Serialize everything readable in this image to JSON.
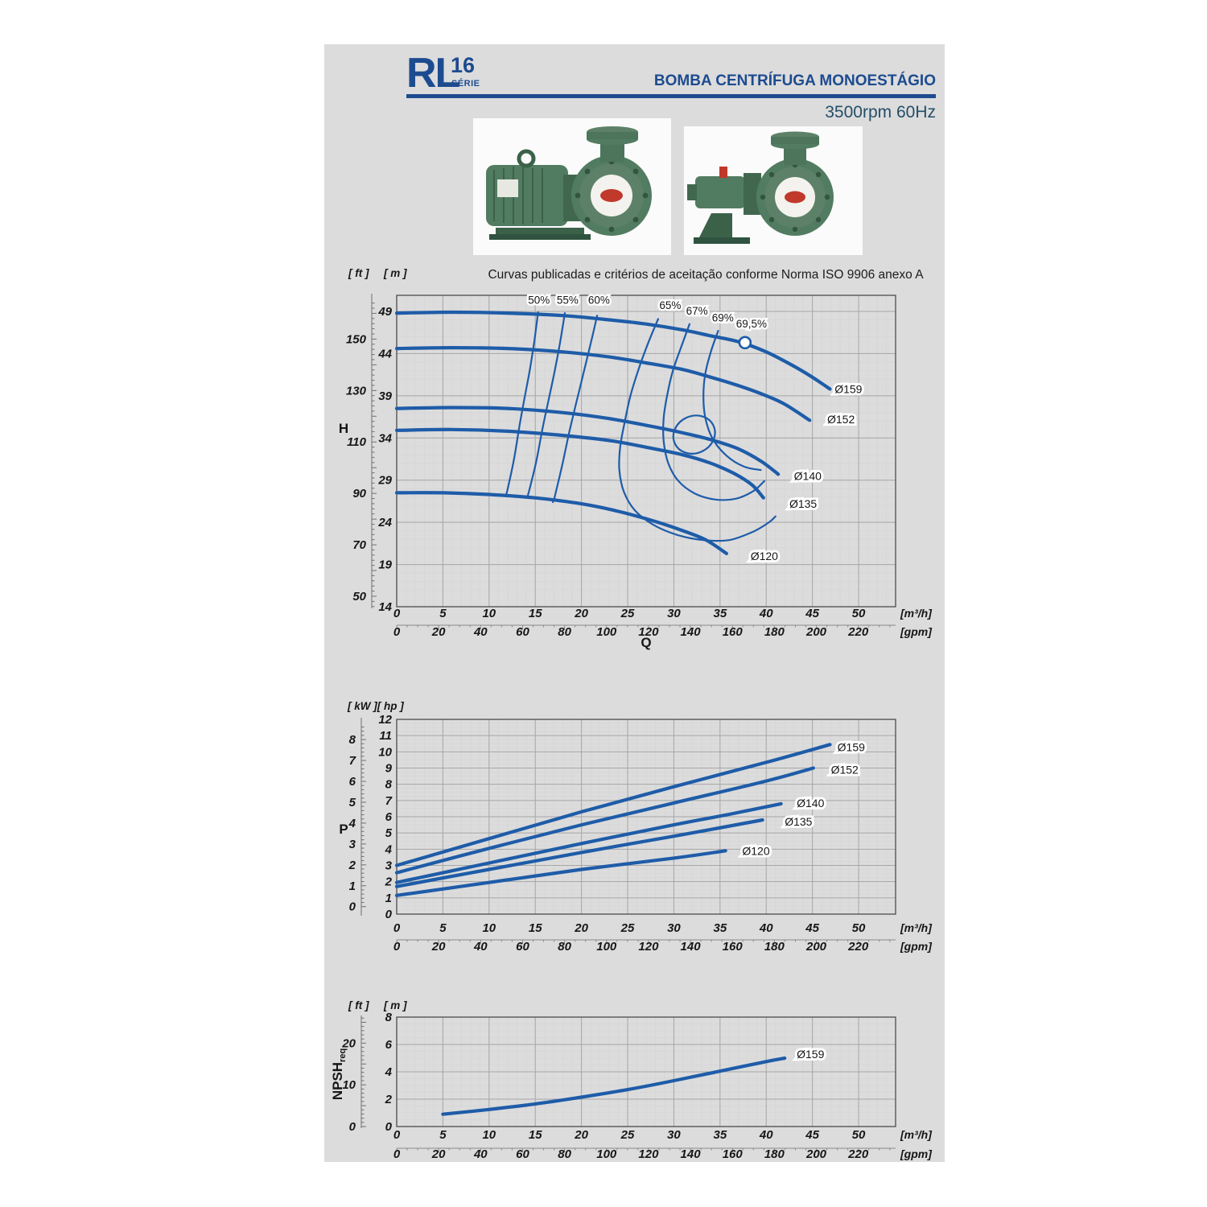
{
  "header": {
    "series_prefix": "RL",
    "series_number": "16",
    "series_word": "SÉRIE",
    "title": "BOMBA CENTRÍFUGA MONOESTÁGIO",
    "subtitle": "3500rpm 60Hz",
    "accent_color": "#1d4b8f"
  },
  "colors": {
    "curve_blue": "#1e5ca8",
    "grid_minor": "#d7d7d7",
    "grid_major": "#a6a6a6",
    "frame": "#4c4c4c",
    "panel_bg": "#dcdcdd",
    "pump_green": "#5d8168",
    "pump_green_dark": "#3c6149",
    "logo_red": "#c0392b"
  },
  "photos": {
    "left_caption": "pump with motor",
    "right_caption": "bare shaft pump"
  },
  "chart_data": [
    {
      "type": "line",
      "id": "hq",
      "title": "Curvas publicadas e critérios de aceitação conforme Norma ISO 9906 anexo A",
      "y_axis_name": "H",
      "y_units": [
        "[ ft ]",
        "[ m ]"
      ],
      "x_label": "Q",
      "x_units": [
        "[m³/h]",
        "[gpm]"
      ],
      "xlim": [
        0,
        54
      ],
      "ylim_m": [
        14,
        50.9
      ],
      "x_ticks_m3h": [
        0,
        5,
        10,
        15,
        20,
        25,
        30,
        35,
        40,
        45,
        50
      ],
      "x_ticks_gpm": [
        0,
        20,
        40,
        60,
        80,
        100,
        120,
        140,
        160,
        180,
        200,
        220
      ],
      "y_ticks_m": [
        14,
        19,
        24,
        29,
        34,
        39,
        44,
        49
      ],
      "y_ticks_ft": [
        50,
        70,
        90,
        110,
        130,
        150
      ],
      "series": [
        {
          "name": "Ø159",
          "points": [
            [
              0,
              48.8
            ],
            [
              6,
              48.9
            ],
            [
              12,
              48.8
            ],
            [
              18,
              48.5
            ],
            [
              23,
              48.0
            ],
            [
              27,
              47.5
            ],
            [
              31,
              46.8
            ],
            [
              34,
              46.1
            ],
            [
              37,
              45.4
            ],
            [
              40,
              44.2
            ],
            [
              43,
              42.5
            ],
            [
              45,
              41.2
            ],
            [
              46.9,
              39.8
            ]
          ]
        },
        {
          "name": "Ø152",
          "points": [
            [
              0,
              44.6
            ],
            [
              6,
              44.7
            ],
            [
              12,
              44.6
            ],
            [
              18,
              44.2
            ],
            [
              23,
              43.6
            ],
            [
              27,
              42.9
            ],
            [
              31,
              42.1
            ],
            [
              34,
              41.2
            ],
            [
              37,
              40.2
            ],
            [
              40,
              39.0
            ],
            [
              42,
              38.0
            ],
            [
              44.7,
              36.1
            ]
          ]
        },
        {
          "name": "Ø140",
          "points": [
            [
              0,
              37.5
            ],
            [
              6,
              37.6
            ],
            [
              12,
              37.5
            ],
            [
              18,
              37.0
            ],
            [
              23,
              36.3
            ],
            [
              27,
              35.5
            ],
            [
              31,
              34.6
            ],
            [
              34,
              33.8
            ],
            [
              37,
              32.7
            ],
            [
              39.5,
              31.2
            ],
            [
              41.3,
              29.7
            ]
          ]
        },
        {
          "name": "Ø135",
          "points": [
            [
              0,
              34.9
            ],
            [
              6,
              35.0
            ],
            [
              12,
              34.8
            ],
            [
              18,
              34.3
            ],
            [
              23,
              33.7
            ],
            [
              27,
              32.9
            ],
            [
              31,
              32.0
            ],
            [
              34,
              31.0
            ],
            [
              36.5,
              29.8
            ],
            [
              38.5,
              28.4
            ],
            [
              39.7,
              26.9
            ]
          ]
        },
        {
          "name": "Ø120",
          "points": [
            [
              0,
              27.5
            ],
            [
              5,
              27.5
            ],
            [
              10,
              27.3
            ],
            [
              15,
              26.9
            ],
            [
              20,
              26.2
            ],
            [
              24,
              25.3
            ],
            [
              28,
              24.1
            ],
            [
              31,
              23.0
            ],
            [
              33.5,
              21.9
            ],
            [
              35.7,
              20.3
            ]
          ]
        }
      ],
      "series_labels": [
        {
          "text": "Ø159",
          "q": 47.4,
          "v": 39.8
        },
        {
          "text": "Ø152",
          "q": 46.6,
          "v": 36.2
        },
        {
          "text": "Ø140",
          "q": 43.0,
          "v": 29.5
        },
        {
          "text": "Ø135",
          "q": 42.5,
          "v": 26.2
        },
        {
          "text": "Ø120",
          "q": 38.3,
          "v": 20.0
        }
      ],
      "efficiency_lines": [
        {
          "label": "50%",
          "points": [
            [
              15.3,
              48.9
            ],
            [
              14.9,
              45.5
            ],
            [
              14.4,
              42.0
            ],
            [
              13.8,
              38.5
            ],
            [
              13.3,
              35.5
            ],
            [
              12.7,
              31.5
            ],
            [
              12.0,
              27.9
            ],
            [
              11.8,
              27.2
            ]
          ]
        },
        {
          "label": "55%",
          "points": [
            [
              18.2,
              48.8
            ],
            [
              17.7,
              45.4
            ],
            [
              17.1,
              41.9
            ],
            [
              16.4,
              38.3
            ],
            [
              15.8,
              35.2
            ],
            [
              15.1,
              31.2
            ],
            [
              14.3,
              27.6
            ],
            [
              14.1,
              26.9
            ]
          ]
        },
        {
          "label": "60%",
          "points": [
            [
              21.7,
              48.5
            ],
            [
              21.0,
              45.2
            ],
            [
              20.2,
              41.6
            ],
            [
              19.4,
              38.0
            ],
            [
              18.7,
              34.8
            ],
            [
              17.9,
              30.7
            ],
            [
              17.1,
              27.0
            ],
            [
              16.9,
              26.4
            ]
          ]
        },
        {
          "label": "65%",
          "points": [
            [
              28.3,
              48.1
            ],
            [
              27.2,
              45.2
            ],
            [
              26.2,
              42.2
            ],
            [
              25.3,
              39.0
            ],
            [
              24.7,
              36.0
            ],
            [
              24.2,
              33.0
            ],
            [
              24.1,
              30.2
            ],
            [
              24.6,
              27.6
            ],
            [
              25.8,
              25.4
            ],
            [
              27.8,
              23.7
            ],
            [
              30.4,
              22.5
            ],
            [
              33.2,
              21.9
            ],
            [
              36.0,
              21.9
            ],
            [
              38.6,
              22.9
            ],
            [
              40.3,
              24.0
            ],
            [
              41.0,
              24.7
            ]
          ]
        },
        {
          "label": "67%",
          "points": [
            [
              31.7,
              47.5
            ],
            [
              30.8,
              44.8
            ],
            [
              29.9,
              42.0
            ],
            [
              29.3,
              39.2
            ],
            [
              28.9,
              36.4
            ],
            [
              28.9,
              33.6
            ],
            [
              29.4,
              31.0
            ],
            [
              30.5,
              28.9
            ],
            [
              32.3,
              27.4
            ],
            [
              34.5,
              26.7
            ],
            [
              36.7,
              26.8
            ],
            [
              38.6,
              27.7
            ],
            [
              39.8,
              28.9
            ]
          ]
        },
        {
          "label": "69%",
          "points": [
            [
              34.8,
              46.7
            ],
            [
              34.0,
              44.2
            ],
            [
              33.4,
              41.6
            ],
            [
              33.2,
              39.0
            ],
            [
              33.4,
              36.4
            ],
            [
              34.2,
              33.9
            ],
            [
              35.7,
              31.9
            ],
            [
              37.6,
              30.6
            ],
            [
              39.4,
              30.2
            ]
          ]
        }
      ],
      "efficiency_labels": [
        {
          "text": "50%",
          "q": 15.4,
          "v": 49.9
        },
        {
          "text": "55%",
          "q": 18.5,
          "v": 49.9
        },
        {
          "text": "60%",
          "q": 21.9,
          "v": 49.9
        },
        {
          "text": "65%",
          "q": 29.6,
          "v": 49.3
        },
        {
          "text": "67%",
          "q": 32.5,
          "v": 48.6
        },
        {
          "text": "69%",
          "q": 35.3,
          "v": 47.8
        },
        {
          "text": "69,5%",
          "q": 38.4,
          "v": 47.1
        }
      ],
      "closed_contour": {
        "q": 32.2,
        "v": 34.4,
        "rq": 2.3,
        "rv": 2.2,
        "rotate": -25
      },
      "bep_marker": {
        "q": 37.7,
        "v": 45.3
      }
    },
    {
      "type": "line",
      "id": "power",
      "y_axis_name": "P",
      "y_units": [
        "[ kW ][ hp ]"
      ],
      "x_units": [
        "[m³/h]",
        "[gpm]"
      ],
      "xlim": [
        0,
        54
      ],
      "ylim_hp": [
        0,
        12
      ],
      "x_ticks_m3h": [
        0,
        5,
        10,
        15,
        20,
        25,
        30,
        35,
        40,
        45,
        50
      ],
      "x_ticks_gpm": [
        0,
        20,
        40,
        60,
        80,
        100,
        120,
        140,
        160,
        180,
        200,
        220
      ],
      "y_ticks_hp": [
        0,
        1,
        2,
        3,
        4,
        5,
        6,
        7,
        8,
        9,
        10,
        11,
        12
      ],
      "y_ticks_kw": [
        0,
        1,
        2,
        3,
        4,
        5,
        6,
        7,
        8
      ],
      "series": [
        {
          "name": "Ø159",
          "points": [
            [
              0,
              3.0
            ],
            [
              10,
              4.65
            ],
            [
              20,
              6.3
            ],
            [
              30,
              7.85
            ],
            [
              40,
              9.35
            ],
            [
              46.9,
              10.45
            ]
          ]
        },
        {
          "name": "Ø152",
          "points": [
            [
              0,
              2.55
            ],
            [
              10,
              4.05
            ],
            [
              20,
              5.5
            ],
            [
              30,
              6.85
            ],
            [
              40,
              8.2
            ],
            [
              45.1,
              9.0
            ]
          ]
        },
        {
          "name": "Ø140",
          "points": [
            [
              0,
              1.95
            ],
            [
              10,
              3.15
            ],
            [
              20,
              4.35
            ],
            [
              30,
              5.5
            ],
            [
              36,
              6.15
            ],
            [
              41.6,
              6.8
            ]
          ]
        },
        {
          "name": "Ø135",
          "points": [
            [
              0,
              1.7
            ],
            [
              10,
              2.75
            ],
            [
              20,
              3.8
            ],
            [
              30,
              4.8
            ],
            [
              39.6,
              5.8
            ]
          ]
        },
        {
          "name": "Ø120",
          "points": [
            [
              0,
              1.15
            ],
            [
              10,
              1.95
            ],
            [
              20,
              2.75
            ],
            [
              30,
              3.45
            ],
            [
              35.6,
              3.9
            ]
          ]
        }
      ],
      "series_labels": [
        {
          "text": "Ø159",
          "q": 47.7,
          "v": 10.3
        },
        {
          "text": "Ø152",
          "q": 47.0,
          "v": 8.9
        },
        {
          "text": "Ø140",
          "q": 43.3,
          "v": 6.85
        },
        {
          "text": "Ø135",
          "q": 42.0,
          "v": 5.7
        },
        {
          "text": "Ø120",
          "q": 37.4,
          "v": 3.9
        }
      ]
    },
    {
      "type": "line",
      "id": "npsh",
      "y_axis_name": {
        "main": "NPSH",
        "sub": "req"
      },
      "y_units": [
        "[ ft ]",
        "[ m ]"
      ],
      "x_units": [
        "[m³/h]",
        "[gpm]"
      ],
      "xlim": [
        0,
        54
      ],
      "ylim_m": [
        0,
        8
      ],
      "x_ticks_m3h": [
        0,
        5,
        10,
        15,
        20,
        25,
        30,
        35,
        40,
        45,
        50
      ],
      "x_ticks_gpm": [
        0,
        20,
        40,
        60,
        80,
        100,
        120,
        140,
        160,
        180,
        200,
        220
      ],
      "y_ticks_m": [
        0,
        2,
        4,
        6,
        8
      ],
      "y_ticks_ft": [
        0,
        10,
        20
      ],
      "series": [
        {
          "name": "Ø159",
          "points": [
            [
              5,
              0.9
            ],
            [
              10,
              1.25
            ],
            [
              15,
              1.65
            ],
            [
              20,
              2.15
            ],
            [
              25,
              2.7
            ],
            [
              30,
              3.35
            ],
            [
              35,
              4.05
            ],
            [
              40,
              4.75
            ],
            [
              42,
              5.0
            ]
          ]
        }
      ],
      "series_labels": [
        {
          "text": "Ø159",
          "q": 43.3,
          "v": 5.3
        }
      ]
    }
  ]
}
